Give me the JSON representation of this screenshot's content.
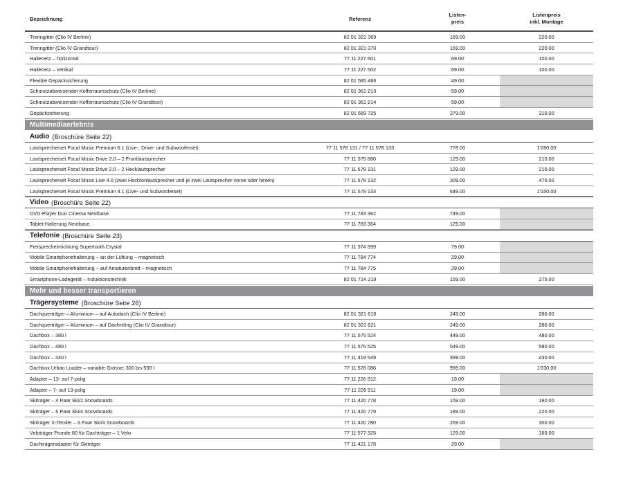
{
  "colors": {
    "section_bar_bg": "#8f9194",
    "section_bar_text": "#ffffff",
    "empty_price_cell_bg": "#d9d9d9",
    "row_divider": "#9a9a9a",
    "strong_divider": "#4d4d4d",
    "text": "#1a1a1a"
  },
  "table": {
    "header": {
      "name": "Bezeichnung",
      "ref": "Referenz",
      "price_l1": "Listen-",
      "price_l2": "preis",
      "montage_l1": "Listenpreis",
      "montage_l2": "inkl. Montage"
    },
    "rows": [
      {
        "type": "item",
        "name": "Trenngitter (Clio IV Berline)",
        "ref": "82 01 321 369",
        "price": "169.00",
        "montage": "220.00"
      },
      {
        "type": "item",
        "name": "Trenngitter (Clio IV Grandtour)",
        "ref": "82 01 321 370",
        "price": "169.00",
        "montage": "220.00"
      },
      {
        "type": "item",
        "name": "Haltenetz – horizontal",
        "ref": "77 11 227 501",
        "price": "69.00",
        "montage": "100.00"
      },
      {
        "type": "item",
        "name": "Haltenetz – vertikal",
        "ref": "77 11 227 502",
        "price": "69.00",
        "montage": "100.00"
      },
      {
        "type": "item",
        "name": "Flexible Gepäcksicherung",
        "ref": "82 01 585 488",
        "price": "49.00",
        "montage": null
      },
      {
        "type": "item",
        "name": "Schmutzabweisender Kofferraumschutz (Clio IV Berline)",
        "ref": "82 01 361 213",
        "price": "59.00",
        "montage": null
      },
      {
        "type": "item",
        "name": "Schmutzabweisender Kofferraumschutz (Clio IV Grandtour)",
        "ref": "82 01 361 214",
        "price": "59.00",
        "montage": null
      },
      {
        "type": "item",
        "name": "Gepäcksicherung",
        "ref": "82 01 669 725",
        "price": "279.00",
        "montage": "310.00"
      },
      {
        "type": "section",
        "label": "Multimediaerlebnis"
      },
      {
        "type": "subsection",
        "title": "Audio",
        "note": "(Broschüre Seite 22)"
      },
      {
        "type": "item",
        "name": "Lautsprecherset Focal Music Premium 6.1 (Live-, Drive- und Subwooferset)",
        "ref": "77 11 578 131 / 77 11 578 133",
        "price": "778.00",
        "montage": "1'280.00"
      },
      {
        "type": "item",
        "name": "Lautsprecherset Focal Music Drive 2.0 – 2 Frontlautsprecher",
        "ref": "77 11 575 880",
        "price": "129.00",
        "montage": "210.00"
      },
      {
        "type": "item",
        "name": "Lautsprecherset Focal Music Drive 2.0 – 2 Hecklautsprecher",
        "ref": "77 11 578 131",
        "price": "129.00",
        "montage": "210.00"
      },
      {
        "type": "item",
        "name": "Lautsprecherset Focal Music Live 4.0 (zwei Hochtonlautsprecher und je zwei Lautsprecher vorne oder hinten)",
        "ref": "77 11 578 132",
        "price": "309.00",
        "montage": "475.00"
      },
      {
        "type": "item",
        "name": "Lautsprecherset Focal Music Premium 4.1 (Live- und Subwooferset)",
        "ref": "77 11 578 133",
        "price": "649.00",
        "montage": "1'150.00"
      },
      {
        "type": "subsection",
        "title": "Video",
        "note": "(Broschüre Seite 22)"
      },
      {
        "type": "item",
        "name": "DVD-Player Duo Cinema Nextbase",
        "ref": "77 11 783 362",
        "price": "749.00",
        "montage": null
      },
      {
        "type": "item",
        "name": "Tablet-Halterung Nextbase",
        "ref": "77 11 783 364",
        "price": "129.00",
        "montage": null
      },
      {
        "type": "subsection",
        "title": "Telefonie",
        "note": "(Broschüre Seite 23)"
      },
      {
        "type": "item",
        "name": "Freisprecheinrichtung Supertooth Crystal",
        "ref": "77 11 574 999",
        "price": "79.00",
        "montage": null
      },
      {
        "type": "item",
        "name": "Mobile Smartphonehalterung – an der Lüftung – magnetisch",
        "ref": "77 11 784 774",
        "price": "29.00",
        "montage": null
      },
      {
        "type": "item",
        "name": "Mobile Smartphonehalterung – auf Amaturenbrett – magnetisch",
        "ref": "77 11 784 775",
        "price": "29.00",
        "montage": null
      },
      {
        "type": "item",
        "name": "Smartphone-Ladegerät – Induktionstechnik",
        "ref": "82 01 714 219",
        "price": "159.00",
        "montage": "275.00"
      },
      {
        "type": "section",
        "label": "Mehr und besser transportieren"
      },
      {
        "type": "subsection",
        "title": "Trägersysteme",
        "note": "(Broschüre Seite 26)"
      },
      {
        "type": "item",
        "name": "Dachquerträger – Aluminium – auf Autodach (Clio IV Berline)",
        "ref": "82 01 321 618",
        "price": "249.00",
        "montage": "280.00"
      },
      {
        "type": "item",
        "name": "Dachquerträger – Aluminium – auf Dachreling (Clio IV Grandtour)",
        "ref": "82 01 321 621",
        "price": "249.00",
        "montage": "280.00"
      },
      {
        "type": "item",
        "name": "Dachbox – 380 l",
        "ref": "77 11 575 524",
        "price": "449.00",
        "montage": "480.00"
      },
      {
        "type": "item",
        "name": "Dachbox – 480 l",
        "ref": "77 11 575 525",
        "price": "549.00",
        "montage": "580.00"
      },
      {
        "type": "item",
        "name": "Dachbox – 340 l",
        "ref": "77 11 419 549",
        "price": "399.00",
        "montage": "430.00"
      },
      {
        "type": "item",
        "name": "Dachbox Urban Loader – variable Grösse: 300 bis 500 l",
        "ref": "77 11 578 086",
        "price": "999.00",
        "montage": "1'030.00"
      },
      {
        "type": "item",
        "name": "Adapter – 13- auf 7-polig",
        "ref": "77 11 226 912",
        "price": "19.00",
        "montage": null
      },
      {
        "type": "item",
        "name": "Adapter – 7- auf 13-polig",
        "ref": "77 11 226 911",
        "price": "19.00",
        "montage": null
      },
      {
        "type": "item",
        "name": "Skiträger – 4 Paar Ski/2 Snowboards",
        "ref": "77 11 420 778",
        "price": "159.00",
        "montage": "190.00"
      },
      {
        "type": "item",
        "name": "Skiträger – 6 Paar Ski/4 Snowboards",
        "ref": "77 11 420 779",
        "price": "189.00",
        "montage": "220.00"
      },
      {
        "type": "item",
        "name": "Skiträger X-Tender – 6 Paar Ski/4 Snowboards",
        "ref": "77 11 420 780",
        "price": "269.00",
        "montage": "300.00"
      },
      {
        "type": "item",
        "name": "Veloträger Proride 80 für Dachträger – 1 Velo",
        "ref": "77 11 577 325",
        "price": "129.00",
        "montage": "160.00"
      },
      {
        "type": "item",
        "name": "Dachträgeradapter für Skiträger",
        "ref": "77 11 421 178",
        "price": "29.00",
        "montage": null
      }
    ]
  }
}
